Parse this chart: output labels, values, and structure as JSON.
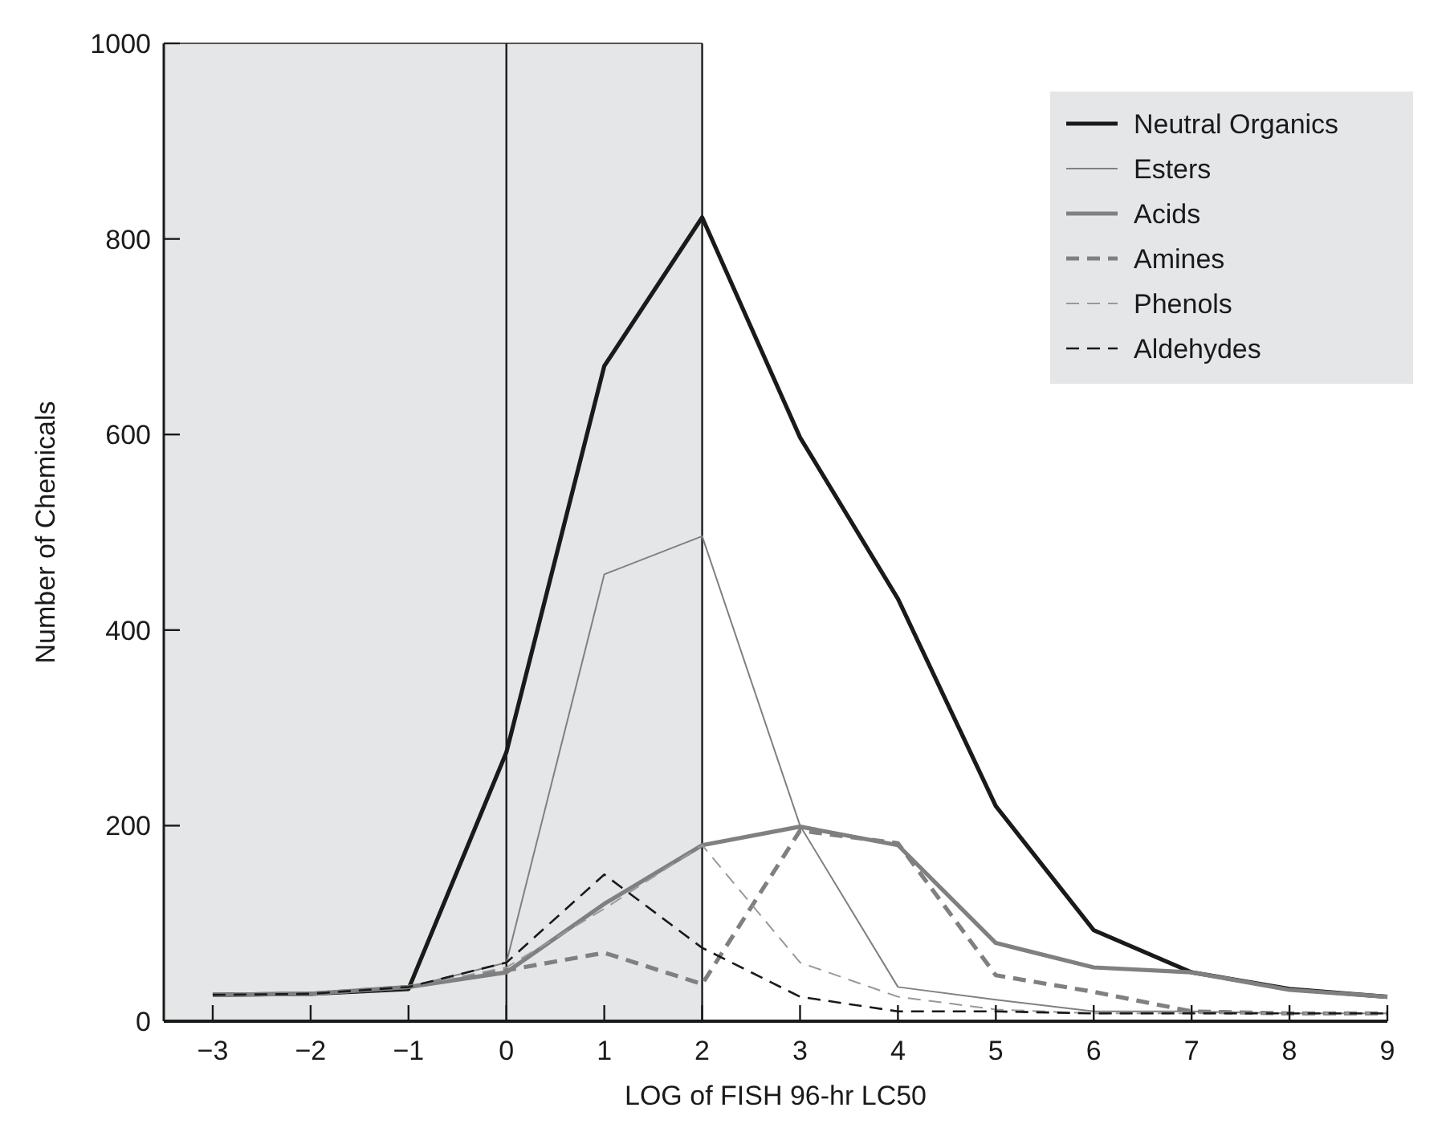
{
  "chart_data": {
    "type": "line",
    "xlabel": "LOG of FISH 96-hr LC50",
    "ylabel": "Number of Chemicals",
    "x": [
      -3,
      -2,
      -1,
      0,
      1,
      2,
      3,
      4,
      5,
      6,
      7,
      8,
      9
    ],
    "xlim": [
      -3.5,
      9
    ],
    "xticks": [
      {
        "value": -3,
        "label": "−3"
      },
      {
        "value": -2,
        "label": "−2"
      },
      {
        "value": -1,
        "label": "−1"
      },
      0,
      1,
      2,
      3,
      4,
      5,
      6,
      7,
      8,
      9
    ],
    "ylim": [
      0,
      1000
    ],
    "yticks": [
      0,
      200,
      400,
      600,
      800,
      1000
    ],
    "grid": false,
    "legend": "top right",
    "marker": "none",
    "bands": [
      {
        "axis": "x",
        "from": -3.5,
        "to": 2,
        "color": "#e5e6e8"
      }
    ],
    "ref_lines": [
      {
        "axis": "x",
        "value": 0,
        "color": "#1a1a1a"
      },
      {
        "axis": "x",
        "value": 2,
        "color": "#1a1a1a"
      }
    ],
    "series": [
      {
        "name": "Neutral Organics",
        "color": "#1a1a1a",
        "line_style": "solid",
        "values": [
          27,
          28,
          33,
          275,
          670,
          822,
          597,
          432,
          220,
          93,
          50,
          33,
          25
        ]
      },
      {
        "name": "Esters",
        "color": "#808080",
        "line_style": "solid",
        "values": [
          27,
          28,
          35,
          60,
          457,
          496,
          200,
          35,
          22,
          10,
          10,
          8,
          8
        ]
      },
      {
        "name": "Acids",
        "color": "#808080",
        "line_style": "solid",
        "values": [
          27,
          28,
          35,
          50,
          120,
          180,
          199,
          180,
          80,
          55,
          50,
          32,
          25
        ]
      },
      {
        "name": "Amines",
        "color": "#808080",
        "line_style": "dashed",
        "values": [
          27,
          28,
          35,
          52,
          70,
          38,
          195,
          182,
          47,
          30,
          10,
          8,
          8
        ]
      },
      {
        "name": "Phenols",
        "color": "#999999",
        "line_style": "dashed",
        "values": [
          27,
          28,
          35,
          55,
          115,
          180,
          60,
          25,
          12,
          8,
          8,
          8,
          8
        ]
      },
      {
        "name": "Aldehydes",
        "color": "#1a1a1a",
        "line_style": "dashed",
        "values": [
          27,
          28,
          35,
          60,
          150,
          75,
          25,
          10,
          10,
          8,
          8,
          8,
          8
        ]
      }
    ]
  }
}
